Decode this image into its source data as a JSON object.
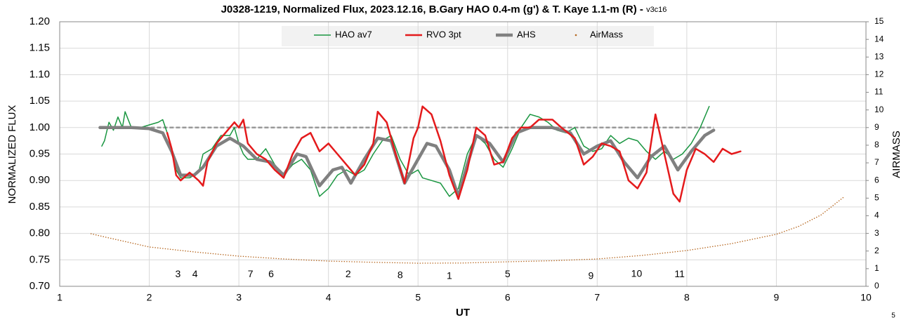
{
  "chart_data": {
    "type": "line",
    "title": "J0328-1219, Normalized Flux, 2023.12.16, B.Gary HAO 0.4-m (g') & T. Kaye 1.1-m (R) -",
    "subtitle": "v3c16",
    "xlabel": "UT",
    "ylabel": "NORMALIZED FLUX",
    "y2label": "AIRMASS",
    "xlim": [
      1,
      10
    ],
    "xticks": [
      1,
      2,
      3,
      4,
      5,
      6,
      7,
      8,
      9,
      10
    ],
    "ylim": [
      0.7,
      1.2
    ],
    "yticks": [
      {
        "value": 0.7,
        "label": "0.70"
      },
      {
        "value": 0.75,
        "label": "0.75"
      },
      {
        "value": 0.8,
        "label": "0.80"
      },
      {
        "value": 0.85,
        "label": "0.85"
      },
      {
        "value": 0.9,
        "label": "0.90"
      },
      {
        "value": 0.95,
        "label": "0.95"
      },
      {
        "value": 1.0,
        "label": "1.00"
      },
      {
        "value": 1.05,
        "label": "1.05"
      },
      {
        "value": 1.1,
        "label": "1.10"
      },
      {
        "value": 1.15,
        "label": "1.15"
      },
      {
        "value": 1.2,
        "label": "1.20"
      }
    ],
    "y2lim": [
      0,
      15
    ],
    "y2ticks": [
      0,
      1,
      2,
      3,
      4,
      5,
      6,
      7,
      8,
      9,
      10,
      11,
      12,
      13,
      14,
      15
    ],
    "grid": true,
    "legend": "top",
    "reference_line": {
      "x": [
        1.45,
        8.3
      ],
      "y": 1.0,
      "color": "#999999"
    },
    "series": [
      {
        "name": "HAO av7",
        "color": "#1a9641",
        "line_width": 1.5,
        "x": [
          1.47,
          1.5,
          1.55,
          1.6,
          1.65,
          1.7,
          1.73,
          1.8,
          1.9,
          2.0,
          2.1,
          2.15,
          2.2,
          2.25,
          2.3,
          2.35,
          2.45,
          2.55,
          2.6,
          2.7,
          2.8,
          2.9,
          2.95,
          3.0,
          3.05,
          3.1,
          3.2,
          3.3,
          3.4,
          3.5,
          3.6,
          3.7,
          3.8,
          3.9,
          4.0,
          4.1,
          4.2,
          4.3,
          4.4,
          4.5,
          4.6,
          4.7,
          4.8,
          4.9,
          5.0,
          5.05,
          5.15,
          5.25,
          5.35,
          5.45,
          5.55,
          5.65,
          5.75,
          5.85,
          5.95,
          6.05,
          6.15,
          6.25,
          6.35,
          6.45,
          6.55,
          6.65,
          6.75,
          6.85,
          6.95,
          7.05,
          7.15,
          7.25,
          7.35,
          7.45,
          7.55,
          7.65,
          7.75,
          7.85,
          7.95,
          8.05,
          8.15,
          8.25
        ],
        "values": [
          0.965,
          0.975,
          1.01,
          0.995,
          1.02,
          1.0,
          1.03,
          1.0,
          1.0,
          1.005,
          1.01,
          1.015,
          0.99,
          0.96,
          0.92,
          0.905,
          0.905,
          0.915,
          0.95,
          0.96,
          0.985,
          0.985,
          1.0,
          0.97,
          0.95,
          0.94,
          0.94,
          0.96,
          0.93,
          0.91,
          0.93,
          0.94,
          0.92,
          0.87,
          0.885,
          0.91,
          0.92,
          0.91,
          0.92,
          0.95,
          0.975,
          0.985,
          0.94,
          0.91,
          0.92,
          0.905,
          0.9,
          0.895,
          0.87,
          0.885,
          0.95,
          0.985,
          0.97,
          0.94,
          0.925,
          0.96,
          1.0,
          1.025,
          1.02,
          1.01,
          0.995,
          0.99,
          1.0,
          0.965,
          0.955,
          0.96,
          0.985,
          0.97,
          0.98,
          0.975,
          0.955,
          0.94,
          0.955,
          0.94,
          0.95,
          0.97,
          1.0,
          1.04
        ]
      },
      {
        "name": "RVO 3pt",
        "color": "#e41a1c",
        "line_width": 2.5,
        "x": [
          2.2,
          2.25,
          2.3,
          2.35,
          2.45,
          2.55,
          2.6,
          2.65,
          2.75,
          2.85,
          2.95,
          3.0,
          3.05,
          3.1,
          3.2,
          3.3,
          3.4,
          3.5,
          3.6,
          3.7,
          3.8,
          3.9,
          4.0,
          4.1,
          4.2,
          4.3,
          4.4,
          4.5,
          4.55,
          4.65,
          4.75,
          4.85,
          4.95,
          5.0,
          5.05,
          5.15,
          5.25,
          5.35,
          5.45,
          5.55,
          5.65,
          5.75,
          5.85,
          5.95,
          6.05,
          6.15,
          6.25,
          6.35,
          6.5,
          6.6,
          6.75,
          6.85,
          6.95,
          7.05,
          7.15,
          7.25,
          7.35,
          7.45,
          7.55,
          7.65,
          7.75,
          7.85,
          7.92,
          8.0,
          8.1,
          8.2,
          8.3,
          8.4,
          8.5,
          8.6
        ],
        "values": [
          0.99,
          0.96,
          0.91,
          0.9,
          0.915,
          0.9,
          0.89,
          0.935,
          0.97,
          0.99,
          1.01,
          1.0,
          1.015,
          0.97,
          0.95,
          0.94,
          0.92,
          0.905,
          0.95,
          0.98,
          0.99,
          0.955,
          0.97,
          0.95,
          0.93,
          0.91,
          0.93,
          0.97,
          1.03,
          1.01,
          0.95,
          0.895,
          0.98,
          1.0,
          1.04,
          1.025,
          0.975,
          0.91,
          0.865,
          0.92,
          1.0,
          0.985,
          0.93,
          0.935,
          0.98,
          1.0,
          1.0,
          1.015,
          1.015,
          1.0,
          0.98,
          0.93,
          0.945,
          0.97,
          0.965,
          0.955,
          0.9,
          0.885,
          0.915,
          1.025,
          0.95,
          0.875,
          0.86,
          0.92,
          0.96,
          0.95,
          0.935,
          0.96,
          0.95,
          0.955
        ]
      },
      {
        "name": "AHS",
        "color": "#808080",
        "line_width": 4.5,
        "x": [
          1.45,
          1.8,
          2.0,
          2.15,
          2.25,
          2.35,
          2.5,
          2.6,
          2.75,
          2.9,
          3.05,
          3.2,
          3.35,
          3.5,
          3.65,
          3.75,
          3.9,
          4.05,
          4.15,
          4.25,
          4.4,
          4.55,
          4.7,
          4.85,
          5.0,
          5.1,
          5.2,
          5.35,
          5.45,
          5.55,
          5.65,
          5.8,
          5.95,
          6.1,
          6.25,
          6.5,
          6.7,
          6.85,
          7.0,
          7.15,
          7.3,
          7.45,
          7.6,
          7.75,
          7.9,
          8.05,
          8.2,
          8.3
        ],
        "values": [
          1.0,
          1.0,
          0.998,
          0.99,
          0.955,
          0.91,
          0.91,
          0.925,
          0.965,
          0.98,
          0.965,
          0.94,
          0.935,
          0.91,
          0.95,
          0.945,
          0.89,
          0.92,
          0.925,
          0.895,
          0.94,
          0.98,
          0.975,
          0.895,
          0.94,
          0.97,
          0.965,
          0.92,
          0.87,
          0.93,
          0.985,
          0.97,
          0.935,
          0.99,
          1.0,
          1.0,
          0.99,
          0.95,
          0.965,
          0.975,
          0.935,
          0.905,
          0.945,
          0.965,
          0.92,
          0.955,
          0.985,
          0.995
        ]
      },
      {
        "name": "AirMass",
        "color": "#b5651d",
        "line_width": 1.5,
        "dotted": true,
        "axis": "y2",
        "x": [
          1.35,
          1.5,
          2.0,
          2.5,
          3.0,
          3.5,
          4.0,
          4.5,
          5.0,
          5.5,
          6.0,
          6.5,
          7.0,
          7.5,
          8.0,
          8.5,
          9.0,
          9.25,
          9.5,
          9.75
        ],
        "values": [
          2.98,
          2.8,
          2.23,
          1.95,
          1.71,
          1.55,
          1.43,
          1.36,
          1.31,
          1.32,
          1.39,
          1.45,
          1.55,
          1.75,
          2.03,
          2.42,
          2.95,
          3.4,
          4.05,
          5.05
        ]
      }
    ],
    "annotations": [
      {
        "text": "3",
        "x": 2.32,
        "y": 0.722
      },
      {
        "text": "4",
        "x": 2.51,
        "y": 0.722
      },
      {
        "text": "7",
        "x": 3.13,
        "y": 0.722
      },
      {
        "text": "6",
        "x": 3.36,
        "y": 0.722
      },
      {
        "text": "2",
        "x": 4.22,
        "y": 0.722
      },
      {
        "text": "8",
        "x": 4.8,
        "y": 0.72
      },
      {
        "text": "1",
        "x": 5.35,
        "y": 0.719
      },
      {
        "text": "5",
        "x": 6.0,
        "y": 0.722
      },
      {
        "text": "9",
        "x": 6.93,
        "y": 0.719
      },
      {
        "text": "10",
        "x": 7.44,
        "y": 0.723
      },
      {
        "text": "11",
        "x": 7.92,
        "y": 0.722
      }
    ],
    "corner_note": "5"
  }
}
